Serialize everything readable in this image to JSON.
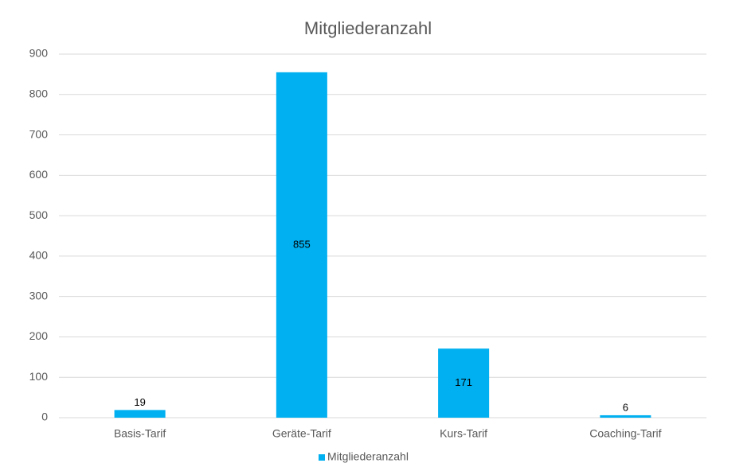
{
  "chart_data": {
    "type": "bar",
    "title": "Mitgliederanzahl",
    "categories": [
      "Basis-Tarif",
      "Geräte-Tarif",
      "Kurs-Tarif",
      "Coaching-Tarif"
    ],
    "series": [
      {
        "name": "Mitgliederanzahl",
        "color": "#00b0f0",
        "values": [
          19,
          855,
          171,
          6
        ]
      }
    ],
    "ylim": [
      0,
      900
    ],
    "yticks": [
      0,
      100,
      200,
      300,
      400,
      500,
      600,
      700,
      800,
      900
    ],
    "grid": true,
    "legend": "bottom",
    "data_labels": true
  }
}
